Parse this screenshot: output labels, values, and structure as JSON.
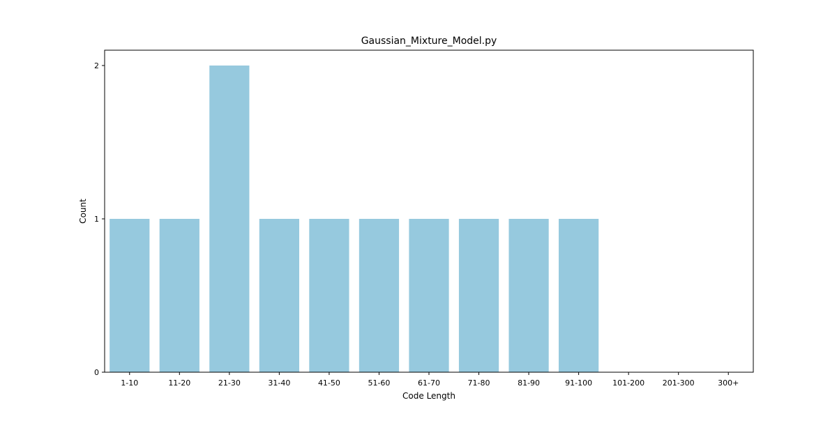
{
  "chart_data": {
    "type": "bar",
    "title": "Gaussian_Mixture_Model.py",
    "xlabel": "Code Length",
    "ylabel": "Count",
    "categories": [
      "1-10",
      "11-20",
      "21-30",
      "31-40",
      "41-50",
      "51-60",
      "61-70",
      "71-80",
      "81-90",
      "91-100",
      "101-200",
      "201-300",
      "300+"
    ],
    "values": [
      1,
      1,
      2,
      1,
      1,
      1,
      1,
      1,
      1,
      1,
      0,
      0,
      0
    ],
    "ylim": [
      0,
      2.1
    ],
    "yticks": [
      0,
      1,
      2
    ],
    "grid": false,
    "legend": "none",
    "bar_color": "#96c9de"
  }
}
